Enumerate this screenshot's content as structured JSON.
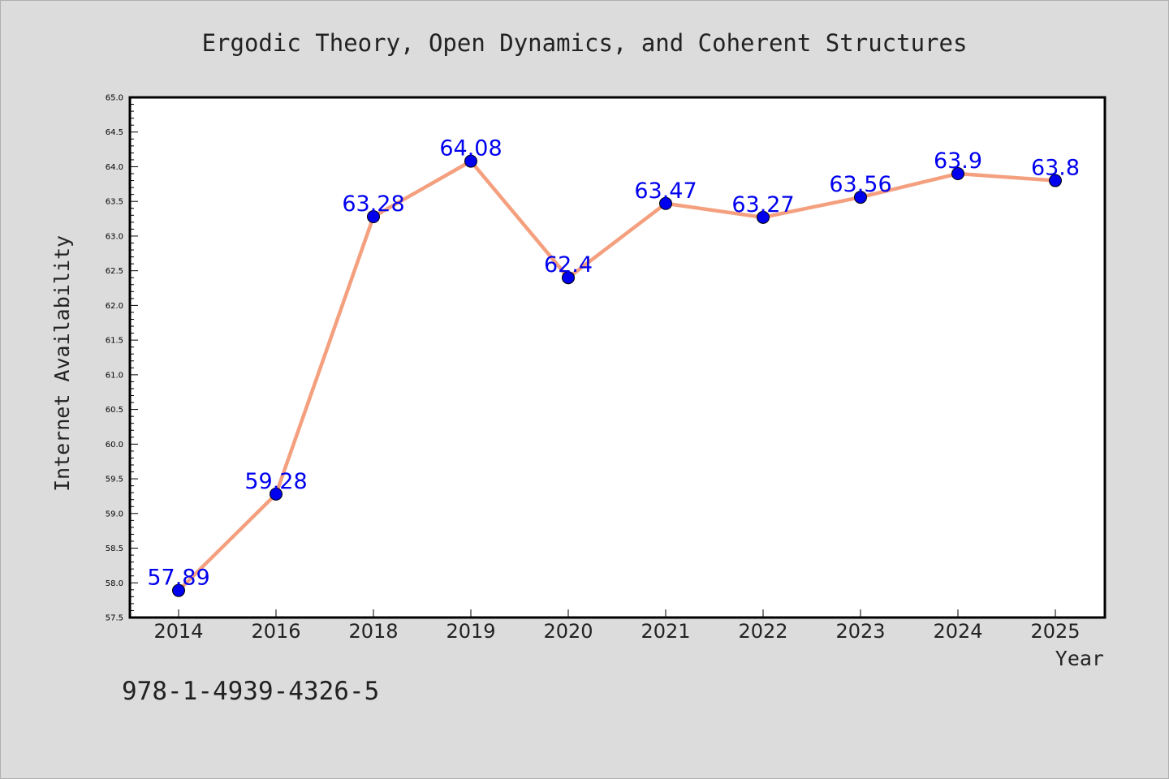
{
  "colors": {
    "background": "#dcdcdc",
    "plot_background": "#ffffff",
    "line": "#f4a07f",
    "marker": "#0000ee",
    "data_label": "#0000ee",
    "text": "#222222"
  },
  "footer": {
    "code": "978-1-4939-4326-5"
  },
  "chart_data": {
    "type": "line",
    "title": "Ergodic Theory, Open Dynamics, and Coherent Structures",
    "xlabel": "Year",
    "ylabel": "Internet Availability",
    "categories": [
      "2014",
      "2016",
      "2018",
      "2019",
      "2020",
      "2021",
      "2022",
      "2023",
      "2024",
      "2025"
    ],
    "series": [
      {
        "values": [
          57.89,
          59.28,
          63.28,
          64.08,
          62.4,
          63.47,
          63.27,
          63.56,
          63.9,
          63.8
        ]
      }
    ],
    "data_labels": [
      "57.89",
      "59.28",
      "63.28",
      "64.08",
      "62.4",
      "63.47",
      "63.27",
      "63.56",
      "63.9",
      "63.8"
    ],
    "ylim": [
      57.5,
      65.0
    ],
    "yticks": [
      "57.5",
      "58.0",
      "58.5",
      "59.0",
      "59.5",
      "60.0",
      "60.5",
      "61.0",
      "61.5",
      "62.0",
      "62.5",
      "63.0",
      "63.5",
      "64.0",
      "64.5",
      "65.0"
    ],
    "grid": false,
    "legend": "none"
  }
}
